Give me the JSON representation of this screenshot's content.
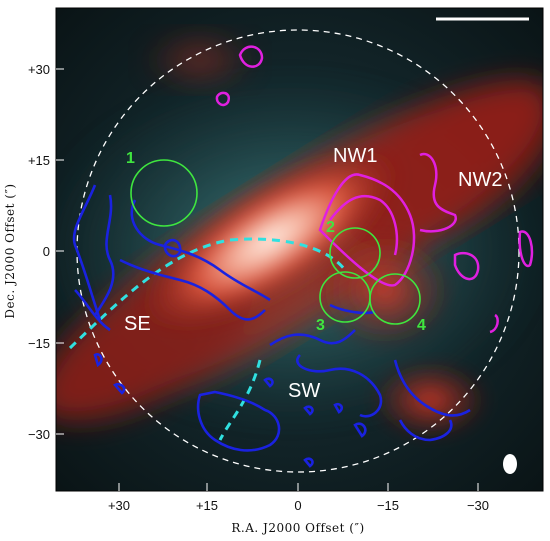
{
  "axes": {
    "xlabel": "R.A. J2000 Offset (″)",
    "ylabel": "Dec. J2000 Offset (″)",
    "xticks": [
      "+30",
      "+15",
      "0",
      "−15",
      "−30"
    ],
    "yticks": [
      "+30",
      "+15",
      "0",
      "−15",
      "−30"
    ]
  },
  "regions": {
    "nw1": "NW1",
    "nw2": "NW2",
    "se": "SE",
    "sw": "SW"
  },
  "circles": [
    "1",
    "2",
    "3",
    "4"
  ],
  "colors": {
    "contour_magenta": "#e020e0",
    "contour_blue": "#1a22e0",
    "circle_green": "#3fe63f",
    "dashed_cyan": "#30e0e0",
    "dashed_white": "#ffffff"
  },
  "icons": {
    "beam": "beam-ellipse-icon",
    "scalebar": "scale-bar-icon"
  }
}
